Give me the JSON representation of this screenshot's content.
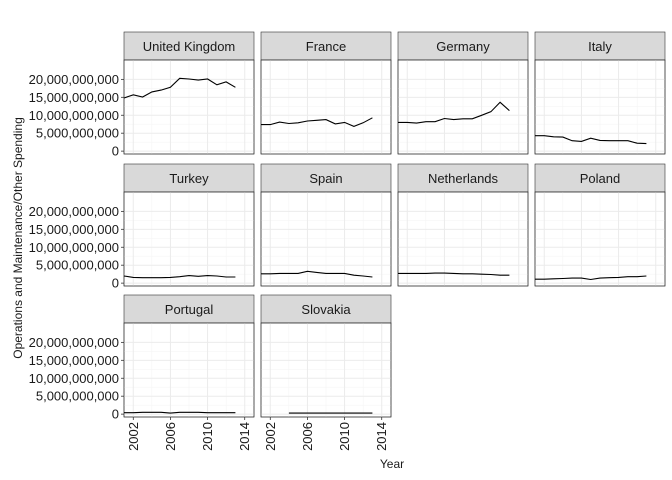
{
  "chart_data": {
    "type": "line",
    "facet": true,
    "theme": "bw",
    "grid": true,
    "xlabel": "Year",
    "ylabel": "Operations and Maintenance/Other Spending",
    "xlim": [
      2001,
      2015
    ],
    "ylim": [
      0,
      20000000000
    ],
    "x_ticks": [
      2002,
      2006,
      2010,
      2014
    ],
    "y_ticks": [
      0,
      5000000000,
      10000000000,
      15000000000,
      20000000000
    ],
    "y_tick_labels": [
      "0",
      "5,000,000,000",
      "10,000,000,000",
      "15,000,000,000",
      "20,000,000,000"
    ],
    "x_tick_labels": [
      "2002",
      "2006",
      "2010",
      "2014"
    ],
    "panels": [
      {
        "name": "United Kingdom",
        "x": [
          2001,
          2002,
          2003,
          2004,
          2005,
          2006,
          2007,
          2008,
          2009,
          2010,
          2011,
          2012,
          2013
        ],
        "values": [
          14800000000,
          15700000000,
          15100000000,
          16500000000,
          17000000000,
          17800000000,
          20300000000,
          20100000000,
          19800000000,
          20100000000,
          18500000000,
          19300000000,
          17800000000
        ]
      },
      {
        "name": "France",
        "x": [
          2001,
          2002,
          2003,
          2004,
          2005,
          2006,
          2007,
          2008,
          2009,
          2010,
          2011,
          2012,
          2013
        ],
        "values": [
          7400000000,
          7400000000,
          8100000000,
          7700000000,
          7900000000,
          8400000000,
          8600000000,
          8800000000,
          7600000000,
          8000000000,
          6900000000,
          7900000000,
          9300000000
        ]
      },
      {
        "name": "Germany",
        "x": [
          2001,
          2002,
          2003,
          2004,
          2005,
          2006,
          2007,
          2008,
          2009,
          2010,
          2011,
          2012,
          2013
        ],
        "values": [
          8000000000,
          8000000000,
          7800000000,
          8200000000,
          8200000000,
          9100000000,
          8800000000,
          9000000000,
          9000000000,
          10000000000,
          11000000000,
          13600000000,
          11300000000
        ]
      },
      {
        "name": "Italy",
        "x": [
          2001,
          2002,
          2003,
          2004,
          2005,
          2006,
          2007,
          2008,
          2009,
          2010,
          2011,
          2012,
          2013
        ],
        "values": [
          4300000000,
          4300000000,
          4000000000,
          3900000000,
          2900000000,
          2700000000,
          3600000000,
          3000000000,
          2900000000,
          2900000000,
          2900000000,
          2200000000,
          2100000000
        ]
      },
      {
        "name": "Turkey",
        "x": [
          2001,
          2002,
          2003,
          2004,
          2005,
          2006,
          2007,
          2008,
          2009,
          2010,
          2011,
          2012,
          2013
        ],
        "values": [
          2000000000,
          1600000000,
          1500000000,
          1500000000,
          1500000000,
          1600000000,
          1800000000,
          2100000000,
          1900000000,
          2100000000,
          2000000000,
          1700000000,
          1700000000
        ]
      },
      {
        "name": "Spain",
        "x": [
          2001,
          2002,
          2003,
          2004,
          2005,
          2006,
          2007,
          2008,
          2009,
          2010,
          2011,
          2012,
          2013
        ],
        "values": [
          2600000000,
          2600000000,
          2700000000,
          2700000000,
          2700000000,
          3300000000,
          3000000000,
          2700000000,
          2700000000,
          2700000000,
          2200000000,
          2000000000,
          1700000000
        ]
      },
      {
        "name": "Netherlands",
        "x": [
          2001,
          2002,
          2003,
          2004,
          2005,
          2006,
          2007,
          2008,
          2009,
          2010,
          2011,
          2012,
          2013
        ],
        "values": [
          2700000000,
          2700000000,
          2700000000,
          2700000000,
          2800000000,
          2800000000,
          2700000000,
          2600000000,
          2600000000,
          2500000000,
          2400000000,
          2200000000,
          2200000000
        ]
      },
      {
        "name": "Poland",
        "x": [
          2001,
          2002,
          2003,
          2004,
          2005,
          2006,
          2007,
          2008,
          2009,
          2010,
          2011,
          2012,
          2013
        ],
        "values": [
          1100000000,
          1100000000,
          1200000000,
          1300000000,
          1400000000,
          1400000000,
          1000000000,
          1400000000,
          1500000000,
          1600000000,
          1800000000,
          1800000000,
          2000000000
        ]
      },
      {
        "name": "Portugal",
        "x": [
          2001,
          2002,
          2003,
          2004,
          2005,
          2006,
          2007,
          2008,
          2009,
          2010,
          2011,
          2012,
          2013
        ],
        "values": [
          400000000,
          400000000,
          500000000,
          500000000,
          500000000,
          300000000,
          500000000,
          500000000,
          500000000,
          400000000,
          400000000,
          400000000,
          400000000
        ]
      },
      {
        "name": "Slovakia",
        "x": [
          2004,
          2005,
          2006,
          2007,
          2008,
          2009,
          2010,
          2011,
          2012,
          2013
        ],
        "values": [
          300000000,
          300000000,
          300000000,
          300000000,
          300000000,
          300000000,
          300000000,
          300000000,
          300000000,
          300000000
        ]
      }
    ]
  }
}
